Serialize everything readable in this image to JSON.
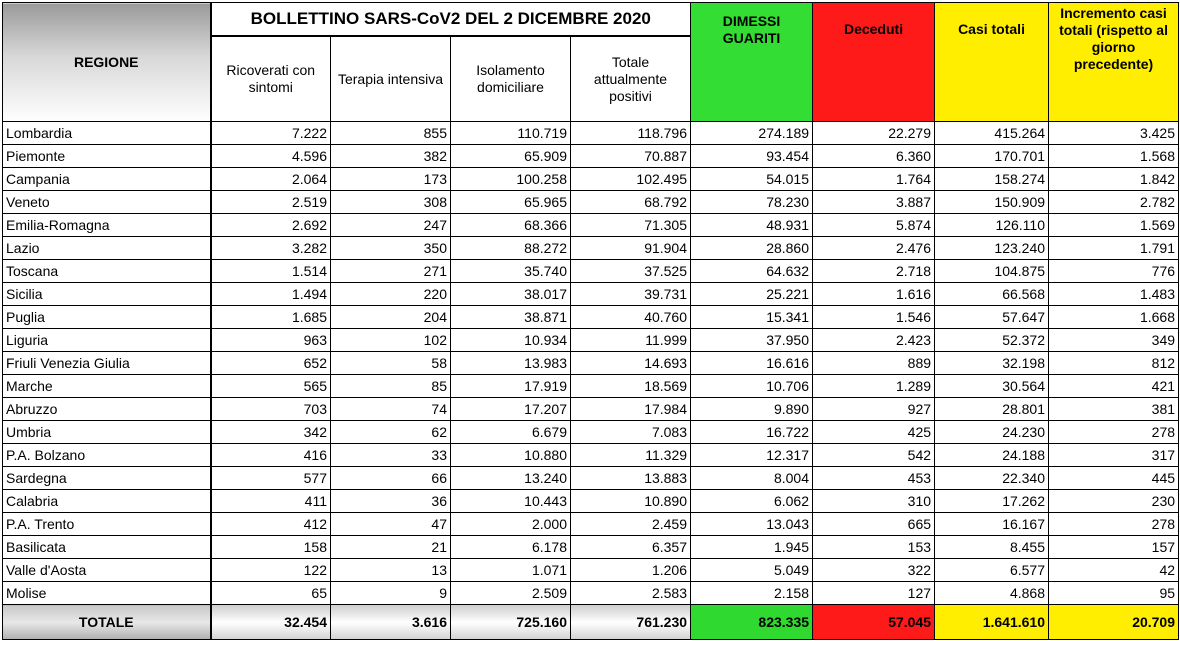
{
  "title": "BOLLETTINO SARS-CoV2 DEL 2 DICEMBRE 2020",
  "headers": {
    "regione": "REGIONE",
    "ricoverati": "Ricoverati con sintomi",
    "terapia": "Terapia intensiva",
    "isolamento": "Isolamento domiciliare",
    "totale_positivi": "Totale attualmente positivi",
    "dimessi": "DIMESSI GUARITI",
    "deceduti": "Deceduti",
    "casi_totali": "Casi totali",
    "incremento": "Incremento casi totali (rispetto al giorno precedente)"
  },
  "colors": {
    "dimessi": "#33dd33",
    "deceduti": "#ff1a1a",
    "casi_totali": "#ffee00",
    "incremento": "#ffee00"
  },
  "rows": [
    [
      "Lombardia",
      "7.222",
      "855",
      "110.719",
      "118.796",
      "274.189",
      "22.279",
      "415.264",
      "3.425"
    ],
    [
      "Piemonte",
      "4.596",
      "382",
      "65.909",
      "70.887",
      "93.454",
      "6.360",
      "170.701",
      "1.568"
    ],
    [
      "Campania",
      "2.064",
      "173",
      "100.258",
      "102.495",
      "54.015",
      "1.764",
      "158.274",
      "1.842"
    ],
    [
      "Veneto",
      "2.519",
      "308",
      "65.965",
      "68.792",
      "78.230",
      "3.887",
      "150.909",
      "2.782"
    ],
    [
      "Emilia-Romagna",
      "2.692",
      "247",
      "68.366",
      "71.305",
      "48.931",
      "5.874",
      "126.110",
      "1.569"
    ],
    [
      "Lazio",
      "3.282",
      "350",
      "88.272",
      "91.904",
      "28.860",
      "2.476",
      "123.240",
      "1.791"
    ],
    [
      "Toscana",
      "1.514",
      "271",
      "35.740",
      "37.525",
      "64.632",
      "2.718",
      "104.875",
      "776"
    ],
    [
      "Sicilia",
      "1.494",
      "220",
      "38.017",
      "39.731",
      "25.221",
      "1.616",
      "66.568",
      "1.483"
    ],
    [
      "Puglia",
      "1.685",
      "204",
      "38.871",
      "40.760",
      "15.341",
      "1.546",
      "57.647",
      "1.668"
    ],
    [
      "Liguria",
      "963",
      "102",
      "10.934",
      "11.999",
      "37.950",
      "2.423",
      "52.372",
      "349"
    ],
    [
      "Friuli Venezia Giulia",
      "652",
      "58",
      "13.983",
      "14.693",
      "16.616",
      "889",
      "32.198",
      "812"
    ],
    [
      "Marche",
      "565",
      "85",
      "17.919",
      "18.569",
      "10.706",
      "1.289",
      "30.564",
      "421"
    ],
    [
      "Abruzzo",
      "703",
      "74",
      "17.207",
      "17.984",
      "9.890",
      "927",
      "28.801",
      "381"
    ],
    [
      "Umbria",
      "342",
      "62",
      "6.679",
      "7.083",
      "16.722",
      "425",
      "24.230",
      "278"
    ],
    [
      "P.A. Bolzano",
      "416",
      "33",
      "10.880",
      "11.329",
      "12.317",
      "542",
      "24.188",
      "317"
    ],
    [
      "Sardegna",
      "577",
      "66",
      "13.240",
      "13.883",
      "8.004",
      "453",
      "22.340",
      "445"
    ],
    [
      "Calabria",
      "411",
      "36",
      "10.443",
      "10.890",
      "6.062",
      "310",
      "17.262",
      "230"
    ],
    [
      "P.A. Trento",
      "412",
      "47",
      "2.000",
      "2.459",
      "13.043",
      "665",
      "16.167",
      "278"
    ],
    [
      "Basilicata",
      "158",
      "21",
      "6.178",
      "6.357",
      "1.945",
      "153",
      "8.455",
      "157"
    ],
    [
      "Valle d'Aosta",
      "122",
      "13",
      "1.071",
      "1.206",
      "5.049",
      "322",
      "6.577",
      "42"
    ],
    [
      "Molise",
      "65",
      "9",
      "2.509",
      "2.583",
      "2.158",
      "127",
      "4.868",
      "95"
    ]
  ],
  "total": [
    "TOTALE",
    "32.454",
    "3.616",
    "725.160",
    "761.230",
    "823.335",
    "57.045",
    "1.641.610",
    "20.709"
  ]
}
